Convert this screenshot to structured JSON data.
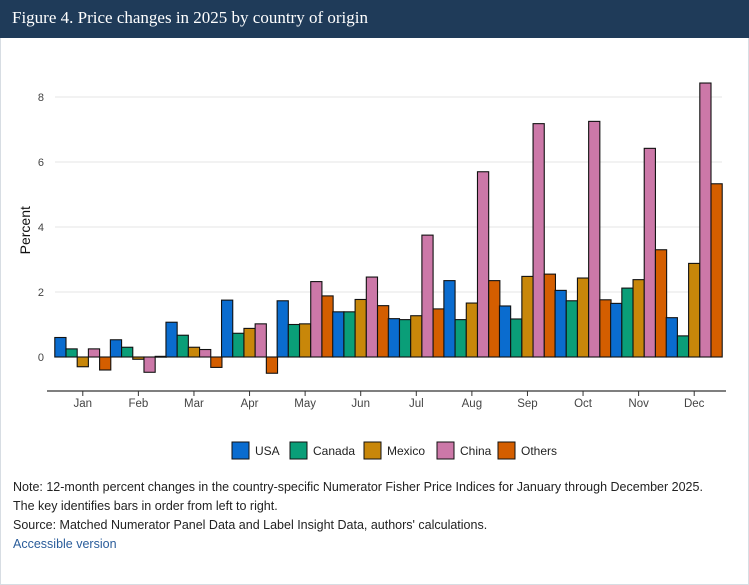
{
  "header": {
    "title": "Figure 4. Price changes in 2025 by country of origin"
  },
  "chart_data": {
    "type": "bar",
    "title": "Figure 4. Price changes in 2025 by country of origin",
    "xlabel": "",
    "ylabel": "Percent",
    "ylim": [
      -1.0,
      8.8
    ],
    "yticks": [
      0,
      2,
      4,
      6,
      8
    ],
    "ytick_labels": [
      "0",
      "2",
      "4",
      "6",
      "8"
    ],
    "grid": true,
    "legend_position": "bottom",
    "categories": [
      "Jan",
      "Feb",
      "Mar",
      "Apr",
      "May",
      "Jun",
      "Jul",
      "Aug",
      "Sep",
      "Oct",
      "Nov",
      "Dec"
    ],
    "series": [
      {
        "name": "USA",
        "color": "#0a6ccf",
        "values": [
          0.6,
          0.53,
          1.07,
          1.75,
          1.73,
          1.39,
          1.18,
          2.35,
          1.57,
          2.05,
          1.65,
          1.21
        ]
      },
      {
        "name": "Canada",
        "color": "#0a9e78",
        "values": [
          0.25,
          0.3,
          0.67,
          0.73,
          1.0,
          1.39,
          1.15,
          1.15,
          1.17,
          1.73,
          2.12,
          0.65
        ]
      },
      {
        "name": "Mexico",
        "color": "#c8870a",
        "values": [
          -0.3,
          -0.07,
          0.3,
          0.88,
          1.02,
          1.77,
          1.27,
          1.66,
          2.48,
          2.43,
          2.38,
          2.88
        ]
      },
      {
        "name": "China",
        "color": "#cc78a8",
        "values": [
          0.25,
          -0.47,
          0.23,
          1.02,
          2.32,
          2.46,
          3.75,
          5.7,
          7.18,
          7.25,
          6.42,
          8.43
        ]
      },
      {
        "name": "Others",
        "color": "#d45e00",
        "values": [
          -0.4,
          0.02,
          -0.32,
          -0.5,
          1.88,
          1.58,
          1.48,
          2.35,
          2.55,
          1.76,
          3.3,
          5.33
        ]
      }
    ]
  },
  "footer": {
    "note_line1": "Note: 12-month percent changes in the country-specific Numerator Fisher Price Indices for January through December 2025.",
    "note_line2": "The key identifies bars in order from left to right.",
    "source": "Source: Matched Numerator Panel Data and Label Insight Data, authors' calculations.",
    "accessible_link": "Accessible version"
  }
}
